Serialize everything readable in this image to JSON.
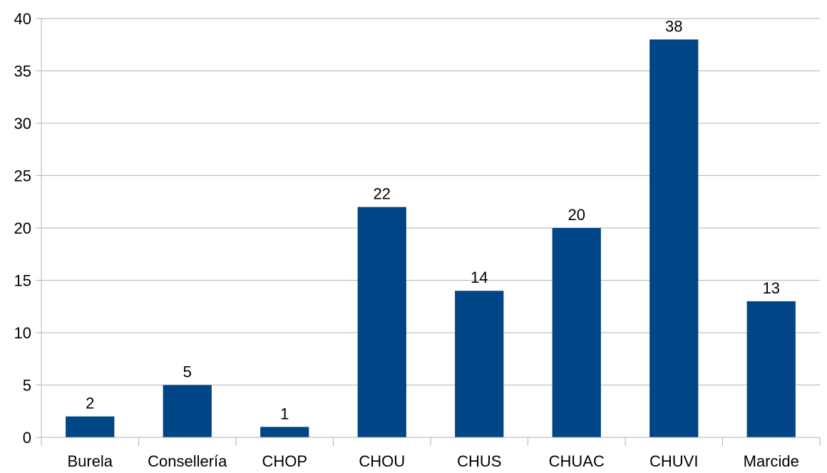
{
  "chart_data": {
    "type": "bar",
    "title": "",
    "xlabel": "",
    "ylabel": "",
    "categories": [
      "Burela",
      "Consellería",
      "CHOP",
      "CHOU",
      "CHUS",
      "CHUAC",
      "CHUVI",
      "Marcide"
    ],
    "values": [
      2,
      5,
      1,
      22,
      14,
      20,
      38,
      13
    ],
    "ylim": [
      0,
      40
    ],
    "yticks": [
      0,
      5,
      10,
      15,
      20,
      25,
      30,
      35,
      40
    ],
    "grid": true,
    "legend": "none",
    "bar_color": "#004586",
    "grid_color": "#b3b3b3",
    "axis_color": "#b3b3b3",
    "text_color": "#000000"
  }
}
